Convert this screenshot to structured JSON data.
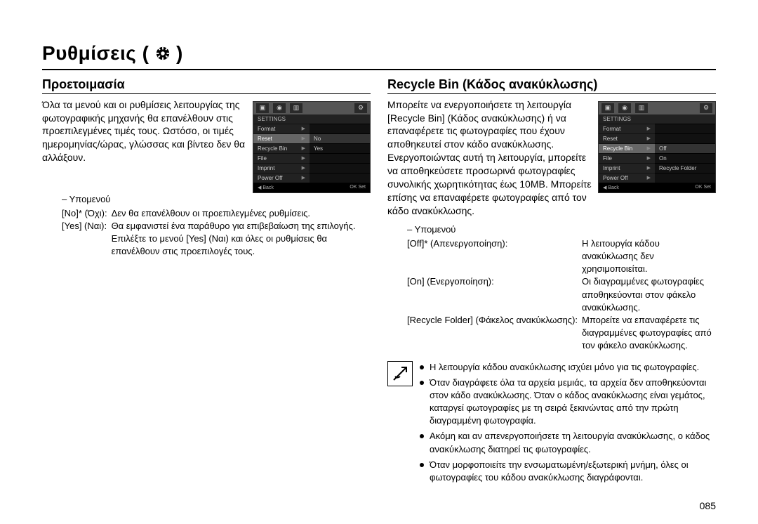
{
  "page": {
    "title": "Ρυθμίσεις ( ",
    "title_suffix": " )",
    "number": "085"
  },
  "left": {
    "heading": "Προετοιμασία",
    "body": "Όλα τα μενού και οι ρυθμίσεις λειτουργίας της φωτογραφικής μηχανής θα επανέλθουν στις προεπιλεγμένες τιμές τους. Ωστόσο, οι τιμές ημερομηνίας/ώρας, γλώσσας και βίντεο δεν θα αλλάξουν.",
    "screenshot": {
      "header": "SETTINGS",
      "rows": [
        {
          "l": "Format",
          "r": "",
          "sel": false
        },
        {
          "l": "Reset",
          "r": "No",
          "sel": true
        },
        {
          "l": "Recycle Bin",
          "r": "Yes",
          "sel": false
        },
        {
          "l": "File",
          "r": "",
          "sel": false
        },
        {
          "l": "Imprint",
          "r": "",
          "sel": false
        },
        {
          "l": "Power Off",
          "r": "",
          "sel": false
        }
      ],
      "footer_left": "◀  Back",
      "footer_right": "OK  Set"
    },
    "submenu_label": "– Υπομενού",
    "defs": [
      {
        "k": "[No]* (Όχι):",
        "v": "Δεν θα επανέλθουν οι προεπιλεγμένες ρυθμίσεις."
      },
      {
        "k": "[Yes] (Ναι):",
        "v": "Θα εμφανιστεί ένα παράθυρο για επιβεβαίωση της επιλογής. Επιλέξτε το μενού [Yes] (Ναι) και όλες οι ρυθμίσεις θα επανέλθουν στις προεπιλογές τους."
      }
    ]
  },
  "right": {
    "heading": "Recycle Bin (Κάδος ανακύκλωσης)",
    "body": "Μπορείτε να ενεργοποιήσετε τη λειτουργία [Recycle Bin] (Κάδος ανακύκλωσης) ή να επαναφέρετε τις φωτογραφίες που έχουν αποθηκευτεί στον κάδο ανακύκλωσης. Ενεργοποιώντας αυτή τη λειτουργία, μπορείτε να αποθηκεύσετε προσωρινά φωτογραφίες συνολικής χωρητικότητας έως 10MB. Μπορείτε επίσης να επαναφέρετε φωτογραφίες από τον κάδο ανακύκλωσης.",
    "screenshot": {
      "header": "SETTINGS",
      "rows": [
        {
          "l": "Format",
          "r": "",
          "sel": false
        },
        {
          "l": "Reset",
          "r": "",
          "sel": false
        },
        {
          "l": "Recycle Bin",
          "r": "Off",
          "sel": true
        },
        {
          "l": "File",
          "r": "On",
          "sel": false
        },
        {
          "l": "Imprint",
          "r": "Recycle Folder",
          "sel": false
        },
        {
          "l": "Power Off",
          "r": "",
          "sel": false
        }
      ],
      "footer_left": "◀  Back",
      "footer_right": "OK  Set"
    },
    "submenu_label": "– Υπομενού",
    "defs": [
      {
        "k": "[Off]* (Απενεργοποίηση):",
        "v": "Η λειτουργία κάδου ανακύκλωσης δεν χρησιμοποιείται."
      },
      {
        "k": "[On] (Ενεργοποίηση):",
        "v": "Οι διαγραμμένες φωτογραφίες αποθηκεύονται στον φάκελο ανακύκλωσης."
      },
      {
        "k": "[Recycle Folder] (Φάκελος ανακύκλωσης):",
        "v": "Μπορείτε να επαναφέρετε τις διαγραμμένες φωτογραφίες από τον φάκελο ανακύκλωσης."
      }
    ],
    "notes": [
      "Η λειτουργία κάδου ανακύκλωσης ισχύει μόνο για τις φωτογραφίες.",
      "Όταν διαγράφετε όλα τα αρχεία μεμιάς, τα αρχεία δεν αποθηκεύονται στον κάδο ανακύκλωσης. Όταν ο κάδος ανακύκλωσης είναι γεμάτος, καταργεί φωτογραφίες με τη σειρά ξεκινώντας από την πρώτη διαγραμμένη φωτογραφία.",
      "Ακόμη και αν απενεργοποιήσετε τη λειτουργία ανακύκλωσης, ο κάδος ανακύκλωσης διατηρεί τις φωτογραφίες.",
      "Όταν μορφοποιείτε την ενσωματωμένη/εξωτερική μνήμη, όλες οι φωτογραφίες του κάδου ανακύκλωσης διαγράφονται."
    ]
  }
}
